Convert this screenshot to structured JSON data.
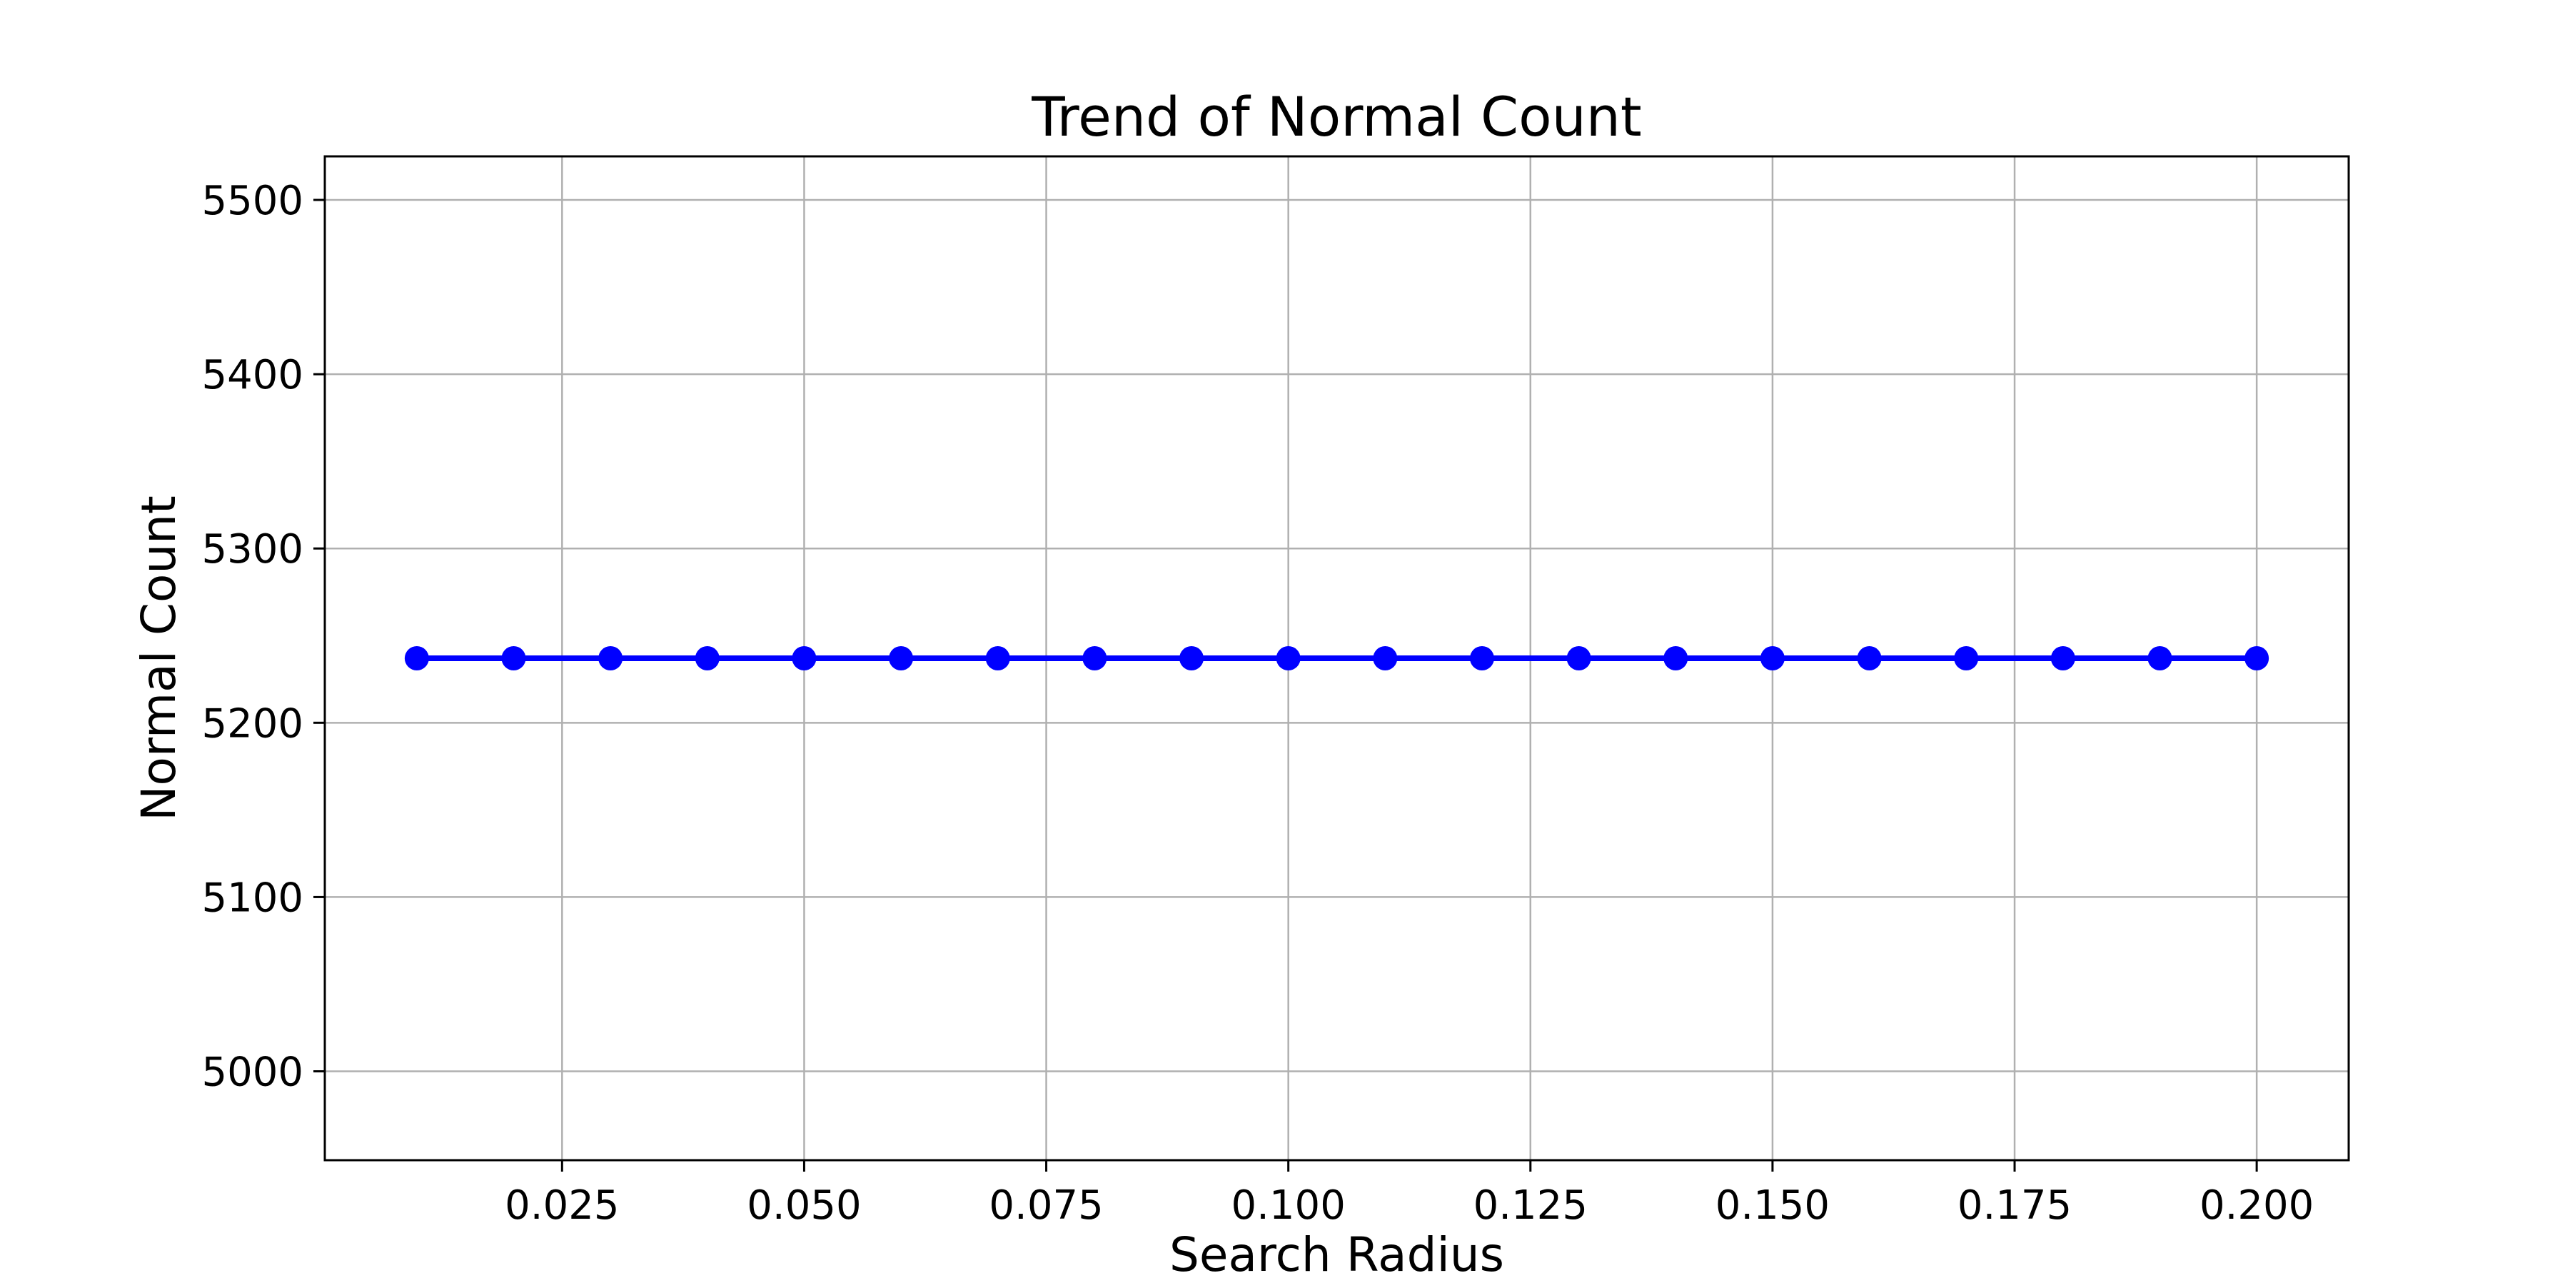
{
  "chart_data": {
    "type": "line",
    "title": "Trend of Normal Count",
    "xlabel": "Search Radius",
    "ylabel": "Normal Count",
    "x": [
      0.01,
      0.02,
      0.03,
      0.04,
      0.05,
      0.06,
      0.07,
      0.08,
      0.09,
      0.1,
      0.11,
      0.12,
      0.13,
      0.14,
      0.15,
      0.16,
      0.17,
      0.18,
      0.19,
      0.2
    ],
    "series": [
      {
        "values": [
          5237,
          5237,
          5237,
          5237,
          5237,
          5237,
          5237,
          5237,
          5237,
          5237,
          5237,
          5237,
          5237,
          5237,
          5237,
          5237,
          5237,
          5237,
          5237,
          5237
        ],
        "color": "#0000ff",
        "marker": "circle"
      }
    ],
    "xlim": [
      0.0005,
      0.2095
    ],
    "ylim": [
      4949,
      5525
    ],
    "xticks": [
      0.025,
      0.05,
      0.075,
      0.1,
      0.125,
      0.15,
      0.175,
      0.2
    ],
    "xtick_labels": [
      "0.025",
      "0.050",
      "0.075",
      "0.100",
      "0.125",
      "0.150",
      "0.175",
      "0.200"
    ],
    "yticks": [
      5000,
      5100,
      5200,
      5300,
      5400,
      5500
    ],
    "ytick_labels": [
      "5000",
      "5100",
      "5200",
      "5300",
      "5400",
      "5500"
    ],
    "grid": true,
    "grid_color": "#b0b0b0"
  }
}
